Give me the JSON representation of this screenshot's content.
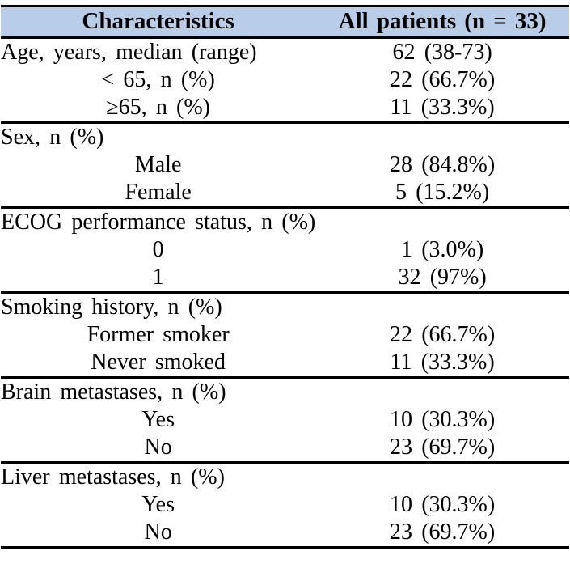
{
  "colors": {
    "header_bg": "#b9cde9",
    "border": "#000000",
    "text": "#000000"
  },
  "table": {
    "header": {
      "characteristics": "Characteristics",
      "all_patients": "All patients (n = 33)"
    },
    "sections": [
      {
        "rows": [
          {
            "label": "Age, years, median (range)",
            "value": "62 (38-73)",
            "indent": false
          },
          {
            "label": "< 65, n (%)",
            "value": "22 (66.7%)",
            "indent": true
          },
          {
            "label": "≥65, n (%)",
            "value": "11 (33.3%)",
            "indent": true
          }
        ]
      },
      {
        "rows": [
          {
            "label": "Sex, n (%)",
            "value": "",
            "indent": false
          },
          {
            "label": "Male",
            "value": "28 (84.8%)",
            "indent": true
          },
          {
            "label": "Female",
            "value": "5 (15.2%)",
            "indent": true
          }
        ]
      },
      {
        "rows": [
          {
            "label": "ECOG performance status, n (%)",
            "value": "",
            "indent": false
          },
          {
            "label": "0",
            "value": "1 (3.0%)",
            "indent": true
          },
          {
            "label": "1",
            "value": "32 (97%)",
            "indent": true
          }
        ]
      },
      {
        "rows": [
          {
            "label": "Smoking history, n (%)",
            "value": "",
            "indent": false
          },
          {
            "label": "Former smoker",
            "value": "22 (66.7%)",
            "indent": true
          },
          {
            "label": "Never smoked",
            "value": "11 (33.3%)",
            "indent": true
          }
        ]
      },
      {
        "rows": [
          {
            "label": "Brain metastases, n (%)",
            "value": "",
            "indent": false
          },
          {
            "label": "Yes",
            "value": "10 (30.3%)",
            "indent": true
          },
          {
            "label": "No",
            "value": "23 (69.7%)",
            "indent": true
          }
        ]
      },
      {
        "rows": [
          {
            "label": "Liver metastases, n (%)",
            "value": "",
            "indent": false
          },
          {
            "label": "Yes",
            "value": "10 (30.3%)",
            "indent": true
          },
          {
            "label": "No",
            "value": "23 (69.7%)",
            "indent": true
          }
        ]
      }
    ]
  }
}
